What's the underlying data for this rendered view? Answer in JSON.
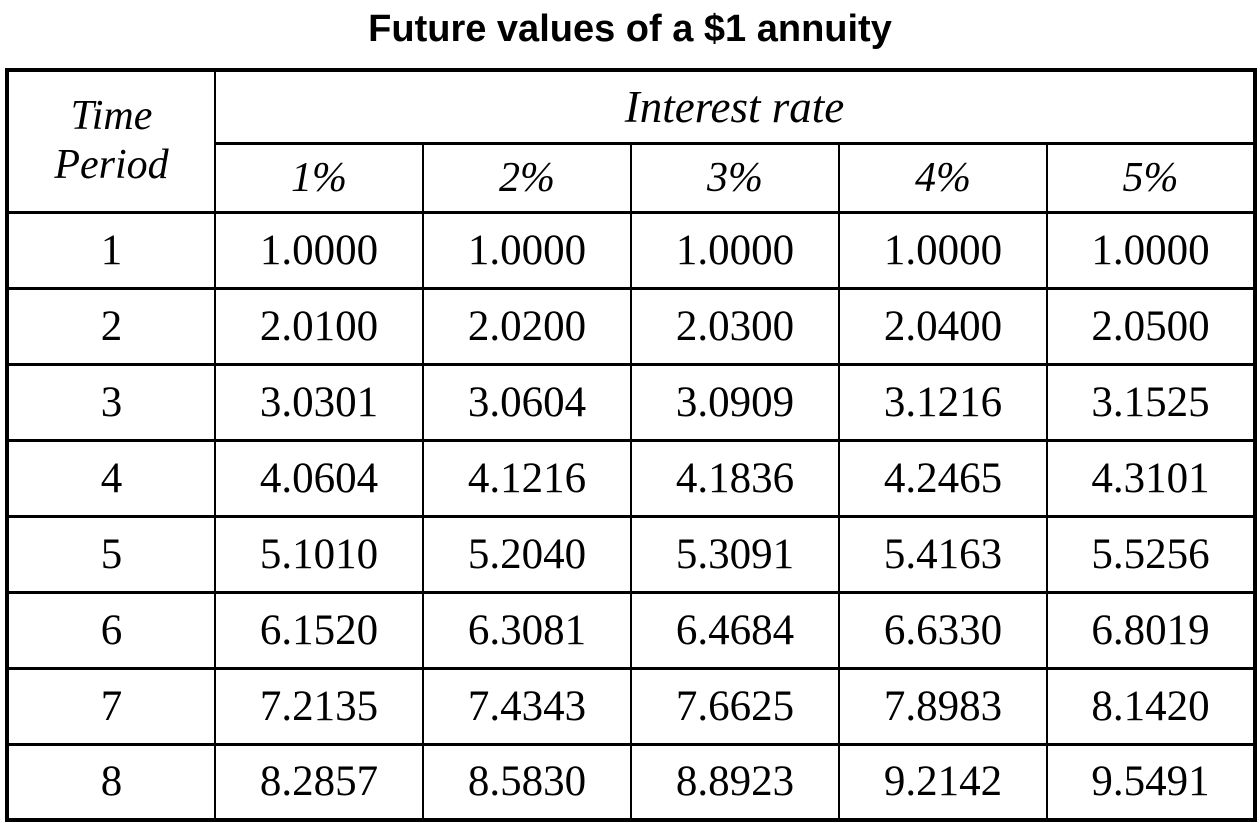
{
  "title": "Future values of a $1 annuity",
  "table": {
    "corner_header": {
      "line1": "Time",
      "line2": "Period"
    },
    "group_header": "Interest rate",
    "columns": [
      "1%",
      "2%",
      "3%",
      "4%",
      "5%"
    ],
    "rows": [
      {
        "period": "1",
        "values": [
          "1.0000",
          "1.0000",
          "1.0000",
          "1.0000",
          "1.0000"
        ]
      },
      {
        "period": "2",
        "values": [
          "2.0100",
          "2.0200",
          "2.0300",
          "2.0400",
          "2.0500"
        ]
      },
      {
        "period": "3",
        "values": [
          "3.0301",
          "3.0604",
          "3.0909",
          "3.1216",
          "3.1525"
        ]
      },
      {
        "period": "4",
        "values": [
          "4.0604",
          "4.1216",
          "4.1836",
          "4.2465",
          "4.3101"
        ]
      },
      {
        "period": "5",
        "values": [
          "5.1010",
          "5.2040",
          "5.3091",
          "5.4163",
          "5.5256"
        ]
      },
      {
        "period": "6",
        "values": [
          "6.1520",
          "6.3081",
          "6.4684",
          "6.6330",
          "6.8019"
        ]
      },
      {
        "period": "7",
        "values": [
          "7.2135",
          "7.4343",
          "7.6625",
          "7.8983",
          "8.1420"
        ]
      },
      {
        "period": "8",
        "values": [
          "8.2857",
          "8.5830",
          "8.8923",
          "9.2142",
          "9.5491"
        ]
      }
    ]
  },
  "colors": {
    "text": "#000000",
    "background": "#ffffff",
    "border": "#000000"
  }
}
